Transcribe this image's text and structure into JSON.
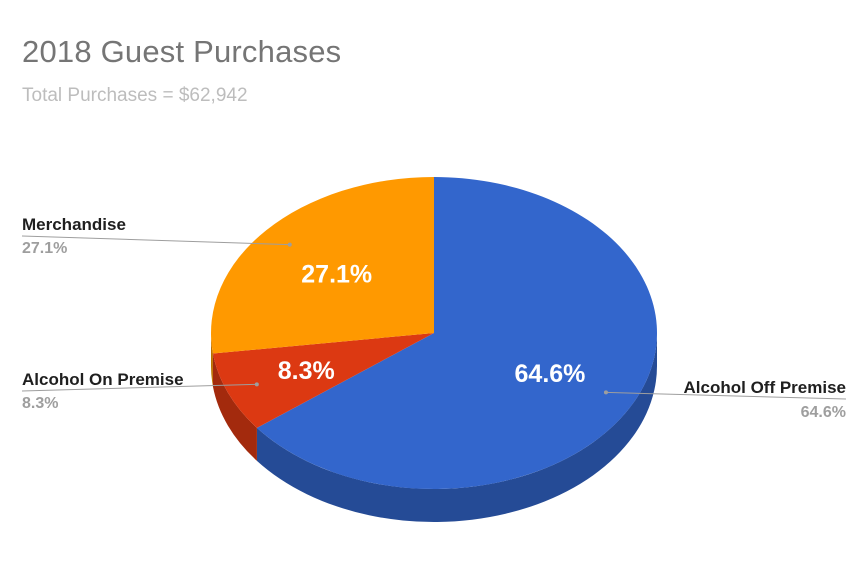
{
  "chart_data": {
    "type": "pie",
    "title": "2018 Guest Purchases",
    "subtitle": "Total Purchases = $62,942",
    "legend": "labels beside slices",
    "slices": [
      {
        "label": "Alcohol Off Premise",
        "value": 64.6,
        "display": "64.6%",
        "color": "#3366cc",
        "side_color": "#254b96"
      },
      {
        "label": "Alcohol On Premise",
        "value": 8.3,
        "display": "8.3%",
        "color": "#dc3912",
        "side_color": "#a32a0d"
      },
      {
        "label": "Merchandise",
        "value": 27.1,
        "display": "27.1%",
        "color": "#ff9900",
        "side_color": "#bd7100"
      }
    ]
  }
}
